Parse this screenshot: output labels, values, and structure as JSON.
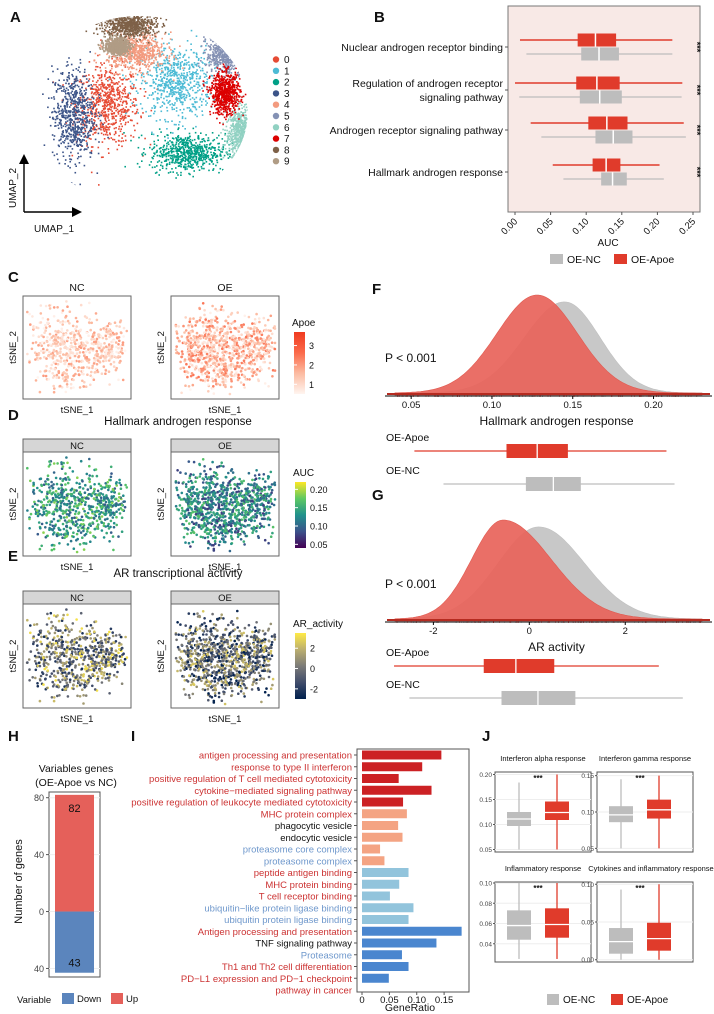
{
  "colors": {
    "oe_apoe": "#e03b2b",
    "oe_nc": "#bdbdbd",
    "density_apoe": "#e8635a",
    "density_nc": "#c8c8c8",
    "panel_b_bg": "#f8e9e6",
    "up": "#e5605a",
    "down": "#5b85bd",
    "go_bp": "#cc2124",
    "go_cc": "#f4a483",
    "go_mf": "#92c4dc",
    "kegg": "#4a86cf",
    "label_red": "#cc3333",
    "label_blue": "#6f98cc",
    "label_black": "#111111"
  },
  "chart_data": [
    {
      "id": "A",
      "panel_label": "A",
      "type": "scatter",
      "title": "",
      "xlabel": "UMAP_1",
      "ylabel": "UMAP_2",
      "legend": {
        "placement": "right",
        "entries": [
          {
            "name": "0",
            "color": "#e64b35"
          },
          {
            "name": "1",
            "color": "#4dbbd5"
          },
          {
            "name": "2",
            "color": "#00a087"
          },
          {
            "name": "3",
            "color": "#3c5488"
          },
          {
            "name": "4",
            "color": "#f39b7f"
          },
          {
            "name": "5",
            "color": "#8491b4"
          },
          {
            "name": "6",
            "color": "#91d1c2"
          },
          {
            "name": "7",
            "color": "#dc0000"
          },
          {
            "name": "8",
            "color": "#7e6148"
          },
          {
            "name": "9",
            "color": "#b09c85"
          }
        ]
      },
      "clusters": [
        {
          "name": "0",
          "cx": -2.0,
          "cy": 0.3,
          "sx": 1.5,
          "sy": 1.9
        },
        {
          "name": "1",
          "cx": 1.6,
          "cy": 1.5,
          "sx": 1.7,
          "sy": 1.7
        },
        {
          "name": "2",
          "cx": 2.2,
          "cy": -2.2,
          "sx": 1.8,
          "sy": 0.9
        },
        {
          "name": "3",
          "cx": -3.8,
          "cy": -0.2,
          "sx": 1.0,
          "sy": 2.2
        },
        {
          "name": "4",
          "cx": -0.5,
          "cy": 3.1,
          "sx": 1.4,
          "sy": 0.9
        },
        {
          "name": "5",
          "cx": 4.3,
          "cy": 3.0,
          "sx": 1.0,
          "sy": 1.0
        },
        {
          "name": "6",
          "cx": 5.0,
          "cy": -1.2,
          "sx": 0.7,
          "sy": 1.3
        },
        {
          "name": "7",
          "cx": 4.2,
          "cy": 0.9,
          "sx": 0.7,
          "sy": 1.0
        },
        {
          "name": "8",
          "cx": -0.9,
          "cy": 4.5,
          "sx": 1.3,
          "sy": 0.6
        },
        {
          "name": "9",
          "cx": -1.5,
          "cy": 3.4,
          "sx": 0.6,
          "sy": 0.4
        }
      ]
    },
    {
      "id": "B",
      "panel_label": "B",
      "type": "boxplot-horizontal",
      "xlabel": "AUC",
      "xlim": [
        0,
        0.25
      ],
      "xticks": [
        "0.00",
        "0.05",
        "0.10",
        "0.15",
        "0.20",
        "0.25"
      ],
      "categories": [
        "Nuclear androgen receptor binding",
        "Regulation of androgen receptor signaling pathway",
        "Androgen receptor signaling pathway",
        "Hallmark androgen response"
      ],
      "category_lines": [
        [
          "Nuclear androgen receptor binding"
        ],
        [
          "Regulation of androgen receptor",
          "signaling pathway"
        ],
        [
          "Androgen receptor signaling pathway"
        ],
        [
          "Hallmark androgen response"
        ]
      ],
      "significance": [
        "***",
        "***",
        "***",
        "***"
      ],
      "legend": {
        "placement": "bottom",
        "entries": [
          "OE-NC",
          "OE-Apoe"
        ]
      },
      "series": [
        {
          "name": "OE-Apoe",
          "boxes": [
            {
              "min": 0.007,
              "q1": 0.088,
              "median": 0.113,
              "q3": 0.142,
              "max": 0.221
            },
            {
              "min": 0.0,
              "q1": 0.086,
              "median": 0.115,
              "q3": 0.147,
              "max": 0.235
            },
            {
              "min": 0.022,
              "q1": 0.103,
              "median": 0.129,
              "q3": 0.158,
              "max": 0.237
            },
            {
              "min": 0.053,
              "q1": 0.109,
              "median": 0.128,
              "q3": 0.148,
              "max": 0.203
            }
          ]
        },
        {
          "name": "OE-NC",
          "boxes": [
            {
              "min": 0.016,
              "q1": 0.093,
              "median": 0.118,
              "q3": 0.146,
              "max": 0.221
            },
            {
              "min": 0.006,
              "q1": 0.091,
              "median": 0.119,
              "q3": 0.15,
              "max": 0.234
            },
            {
              "min": 0.037,
              "q1": 0.113,
              "median": 0.138,
              "q3": 0.165,
              "max": 0.24
            },
            {
              "min": 0.068,
              "q1": 0.121,
              "median": 0.137,
              "q3": 0.157,
              "max": 0.209
            }
          ]
        }
      ]
    },
    {
      "id": "C",
      "panel_label": "C",
      "type": "scatter",
      "facets": [
        "NC",
        "OE"
      ],
      "xlabel": "tSNE_1",
      "ylabel": "tSNE_2",
      "colorbar": {
        "title": "Apoe",
        "ticks": [
          "1",
          "2",
          "3"
        ],
        "range": [
          0.5,
          3.7
        ],
        "low": "#fff5f0",
        "high": "#f03b20"
      },
      "expression_level": {
        "NC": 1.6,
        "OE": 2.1
      }
    },
    {
      "id": "D",
      "panel_label": "D",
      "type": "scatter",
      "title": "Hallmark androgen response",
      "facets": [
        "NC",
        "OE"
      ],
      "xlabel": "tSNE_1",
      "ylabel": "tSNE_2",
      "colorbar": {
        "title": "AUC",
        "ticks": [
          "0.05",
          "0.10",
          "0.15",
          "0.20"
        ],
        "range": [
          0.04,
          0.22
        ],
        "palette": "viridis"
      },
      "mean_value": {
        "NC": 0.14,
        "OE": 0.12
      }
    },
    {
      "id": "E",
      "panel_label": "E",
      "type": "scatter",
      "title": "AR transcriptional activity",
      "facets": [
        "NC",
        "OE"
      ],
      "xlabel": "tSNE_1",
      "ylabel": "tSNE_2",
      "colorbar": {
        "title": "AR_activity",
        "ticks": [
          "-2",
          "0",
          "2"
        ],
        "range": [
          -3,
          3.5
        ],
        "palette": "cividis"
      },
      "mean_value": {
        "NC": 0.4,
        "OE": -0.3
      }
    },
    {
      "id": "F",
      "panel_label": "F",
      "type": "area",
      "subtype": "density-with-boxplot",
      "xlabel": "Hallmark androgen response",
      "xlim": [
        0.04,
        0.23
      ],
      "xticks": [
        "0.05",
        "0.10",
        "0.15",
        "0.20"
      ],
      "annotation": "P < 0.001",
      "density": [
        {
          "name": "OE-NC",
          "mode": 0.145,
          "sd_left": 0.025,
          "sd_right": 0.022
        },
        {
          "name": "OE-Apoe",
          "mode": 0.128,
          "sd_left": 0.025,
          "sd_right": 0.025
        }
      ],
      "boxes": [
        {
          "name": "OE-Apoe",
          "min": 0.052,
          "q1": 0.109,
          "median": 0.128,
          "q3": 0.147,
          "max": 0.208
        },
        {
          "name": "OE-NC",
          "min": 0.07,
          "q1": 0.121,
          "median": 0.138,
          "q3": 0.155,
          "max": 0.213
        }
      ]
    },
    {
      "id": "G",
      "panel_label": "G",
      "type": "area",
      "subtype": "density-with-boxplot",
      "xlabel": "AR activity",
      "xlim": [
        -2.8,
        3.6
      ],
      "xticks": [
        "-2",
        "0",
        "2"
      ],
      "annotation": "P < 0.001",
      "density": [
        {
          "name": "OE-NC",
          "mode": 0.2,
          "sd_left": 0.85,
          "sd_right": 0.95
        },
        {
          "name": "OE-Apoe",
          "mode": -0.55,
          "sd_left": 0.65,
          "sd_right": 1.0
        }
      ],
      "boxes": [
        {
          "name": "OE-Apoe",
          "min": -3.1,
          "q1": -0.95,
          "median": -0.28,
          "q3": 0.52,
          "max": 2.7
        },
        {
          "name": "OE-NC",
          "min": -2.5,
          "q1": -0.58,
          "median": 0.18,
          "q3": 0.96,
          "max": 3.2
        }
      ]
    },
    {
      "id": "H",
      "panel_label": "H",
      "type": "bar",
      "title": "Variables genes\n(OE-Apoe vs NC)",
      "title_lines": [
        "Variables genes",
        "(OE-Apoe vs NC)"
      ],
      "ylabel": "Number of genes",
      "yticks": [
        "80",
        "40",
        "0",
        "40"
      ],
      "ylim": [
        -46,
        84
      ],
      "series": [
        {
          "name": "Up",
          "value": 82
        },
        {
          "name": "Down",
          "value": 43
        }
      ],
      "legend": {
        "title": "Variable",
        "placement": "bottom",
        "entries": [
          "Down",
          "Up"
        ]
      }
    },
    {
      "id": "I",
      "panel_label": "I",
      "type": "bar",
      "orientation": "horizontal",
      "xlabel": "GeneRatio",
      "xlim": [
        0,
        0.19
      ],
      "xticks": [
        "0",
        "0.05",
        "0.10",
        "0.15"
      ],
      "categories": [
        {
          "label": "antigen processing and presentation",
          "value": 0.145,
          "group": "BP",
          "label_color": "red"
        },
        {
          "label": "response to type II interferon",
          "value": 0.11,
          "group": "BP",
          "label_color": "red"
        },
        {
          "label": "positive regulation of T cell mediated cytotoxicity",
          "value": 0.067,
          "group": "BP",
          "label_color": "red"
        },
        {
          "label": "cytokine-mediated signaling pathway",
          "value": 0.127,
          "group": "BP",
          "label_color": "red"
        },
        {
          "label": "positive regulation of leukocyte mediated cytotoxicity",
          "value": 0.075,
          "group": "BP",
          "label_color": "red"
        },
        {
          "label": "MHC protein complex",
          "value": 0.082,
          "group": "CC",
          "label_color": "red"
        },
        {
          "label": "phagocytic vesicle",
          "value": 0.066,
          "group": "CC",
          "label_color": "black"
        },
        {
          "label": "endocytic vesicle",
          "value": 0.074,
          "group": "CC",
          "label_color": "black"
        },
        {
          "label": "proteasome core complex",
          "value": 0.033,
          "group": "CC",
          "label_color": "blue"
        },
        {
          "label": "proteasome complex",
          "value": 0.041,
          "group": "CC",
          "label_color": "blue"
        },
        {
          "label": "peptide antigen binding",
          "value": 0.085,
          "group": "MF",
          "label_color": "red"
        },
        {
          "label": "MHC protein binding",
          "value": 0.068,
          "group": "MF",
          "label_color": "red"
        },
        {
          "label": "T cell receptor binding",
          "value": 0.051,
          "group": "MF",
          "label_color": "red"
        },
        {
          "label": "ubiquitin-like protein ligase binding",
          "value": 0.094,
          "group": "MF",
          "label_color": "blue"
        },
        {
          "label": "ubiquitin protein ligase binding",
          "value": 0.085,
          "group": "MF",
          "label_color": "blue"
        },
        {
          "label": "Antigen processing and presentation",
          "value": 0.182,
          "group": "KEGG",
          "label_color": "red"
        },
        {
          "label": "TNF signaling pathway",
          "value": 0.136,
          "group": "KEGG",
          "label_color": "black"
        },
        {
          "label": "Proteasome",
          "value": 0.073,
          "group": "KEGG",
          "label_color": "blue"
        },
        {
          "label": "Th1 and Th2 cell differentiation",
          "value": 0.085,
          "group": "KEGG",
          "label_color": "red"
        },
        {
          "label": "PD-L1 expression and PD-1 checkpoint pathway in cancer",
          "value": 0.049,
          "group": "KEGG",
          "label_color": "red",
          "lines": [
            "PD−L1 expression and PD−1 checkpoint",
            "pathway in cancer"
          ]
        }
      ]
    },
    {
      "id": "J",
      "panel_label": "J",
      "type": "boxplot",
      "legend": {
        "placement": "bottom",
        "entries": [
          "OE-NC",
          "OE-Apoe"
        ]
      },
      "facets": [
        {
          "title": "Interferon alpha response",
          "ylim": [
            0.045,
            0.205
          ],
          "yticks": [
            "0.05",
            "0.10",
            "0.15",
            "0.20"
          ],
          "significance": "***",
          "boxes": [
            {
              "name": "OE-NC",
              "min": 0.05,
              "q1": 0.097,
              "median": 0.111,
              "q3": 0.125,
              "max": 0.184
            },
            {
              "name": "OE-Apoe",
              "min": 0.05,
              "q1": 0.109,
              "median": 0.124,
              "q3": 0.146,
              "max": 0.2
            }
          ]
        },
        {
          "title": "Interferon gamma response",
          "ylim": [
            0.045,
            0.155
          ],
          "yticks": [
            "0.05",
            "0.10",
            "0.15"
          ],
          "significance": "***",
          "boxes": [
            {
              "name": "OE-NC",
              "min": 0.05,
              "q1": 0.086,
              "median": 0.096,
              "q3": 0.108,
              "max": 0.145
            },
            {
              "name": "OE-Apoe",
              "min": 0.05,
              "q1": 0.091,
              "median": 0.103,
              "q3": 0.117,
              "max": 0.15
            }
          ]
        },
        {
          "title": "Inflammatory response",
          "ylim": [
            0.022,
            0.101
          ],
          "yticks": [
            "0.04",
            "0.06",
            "0.08",
            "0.10"
          ],
          "significance": "***",
          "boxes": [
            {
              "name": "OE-NC",
              "min": 0.025,
              "q1": 0.044,
              "median": 0.058,
              "q3": 0.073,
              "max": 0.1
            },
            {
              "name": "OE-Apoe",
              "min": 0.025,
              "q1": 0.046,
              "median": 0.059,
              "q3": 0.075,
              "max": 0.1
            }
          ]
        },
        {
          "title": "Cytokines and inflammatory response",
          "ylim": [
            -0.003,
            0.103
          ],
          "yticks": [
            "0.00",
            "0.05",
            "0.10"
          ],
          "significance": "***",
          "boxes": [
            {
              "name": "OE-NC",
              "min": 0.0,
              "q1": 0.008,
              "median": 0.024,
              "q3": 0.042,
              "max": 0.093
            },
            {
              "name": "OE-Apoe",
              "min": 0.0,
              "q1": 0.012,
              "median": 0.028,
              "q3": 0.049,
              "max": 0.1
            }
          ]
        }
      ]
    }
  ]
}
